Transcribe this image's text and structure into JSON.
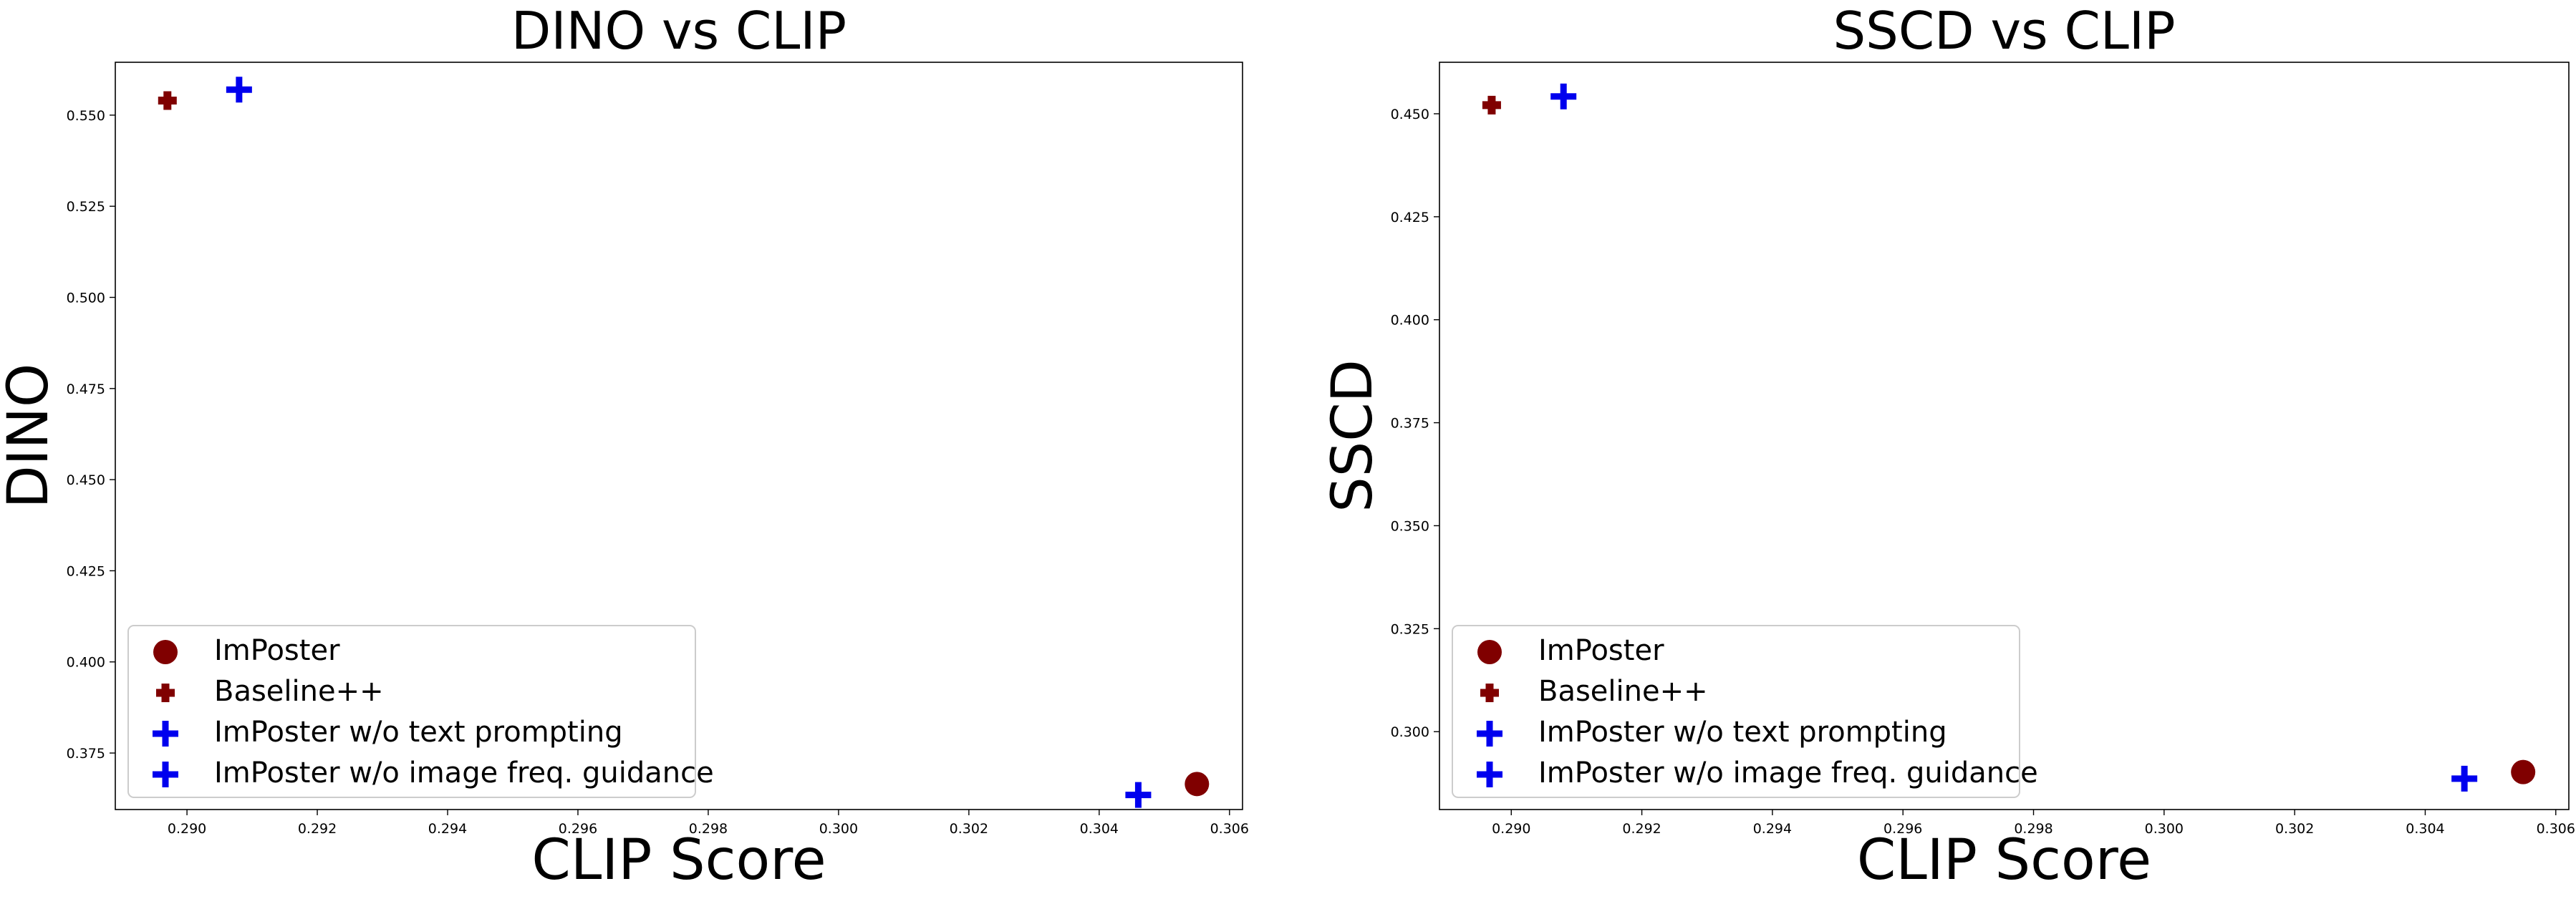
{
  "chart_data": [
    {
      "type": "scatter",
      "title": "DINO vs CLIP",
      "xlabel": "CLIP Score",
      "ylabel": "DINO",
      "xlim": [
        0.2889,
        0.3062
      ],
      "ylim": [
        0.3595,
        0.5645
      ],
      "xticks": [
        "0.290",
        "0.292",
        "0.294",
        "0.296",
        "0.298",
        "0.300",
        "0.302",
        "0.304",
        "0.306"
      ],
      "yticks": [
        "0.375",
        "0.400",
        "0.425",
        "0.450",
        "0.475",
        "0.500",
        "0.525",
        "0.550"
      ],
      "legend_position": "lower-left",
      "series": [
        {
          "name": "ImPoster",
          "marker": "circle",
          "color": "#800000",
          "points": [
            {
              "x": 0.3055,
              "y": 0.3665
            }
          ]
        },
        {
          "name": "Baseline++",
          "marker": "plus-thick",
          "color": "#800000",
          "points": [
            {
              "x": 0.2897,
              "y": 0.554
            }
          ]
        },
        {
          "name": "ImPoster w/o text prompting",
          "marker": "plus",
          "color": "#0000ee",
          "points": [
            {
              "x": 0.3046,
              "y": 0.3635
            }
          ]
        },
        {
          "name": "ImPoster w/o image freq. guidance",
          "marker": "plus",
          "color": "#0000ee",
          "points": [
            {
              "x": 0.2908,
              "y": 0.557
            }
          ]
        }
      ]
    },
    {
      "type": "scatter",
      "title": "SSCD vs CLIP",
      "xlabel": "CLIP Score",
      "ylabel": "SSCD",
      "xlim": [
        0.2889,
        0.3062
      ],
      "ylim": [
        0.2811,
        0.4625
      ],
      "xticks": [
        "0.290",
        "0.292",
        "0.294",
        "0.296",
        "0.298",
        "0.300",
        "0.302",
        "0.304",
        "0.306"
      ],
      "yticks": [
        "0.300",
        "0.325",
        "0.350",
        "0.375",
        "0.400",
        "0.425",
        "0.450"
      ],
      "legend_position": "lower-left",
      "series": [
        {
          "name": "ImPoster",
          "marker": "circle",
          "color": "#800000",
          "points": [
            {
              "x": 0.3055,
              "y": 0.2902
            }
          ]
        },
        {
          "name": "Baseline++",
          "marker": "plus-thick",
          "color": "#800000",
          "points": [
            {
              "x": 0.2897,
              "y": 0.4521
            }
          ]
        },
        {
          "name": "ImPoster w/o text prompting",
          "marker": "plus",
          "color": "#0000ee",
          "points": [
            {
              "x": 0.3046,
              "y": 0.2886
            }
          ]
        },
        {
          "name": "ImPoster w/o image freq. guidance",
          "marker": "plus",
          "color": "#0000ee",
          "points": [
            {
              "x": 0.2908,
              "y": 0.4542
            }
          ]
        }
      ]
    }
  ]
}
